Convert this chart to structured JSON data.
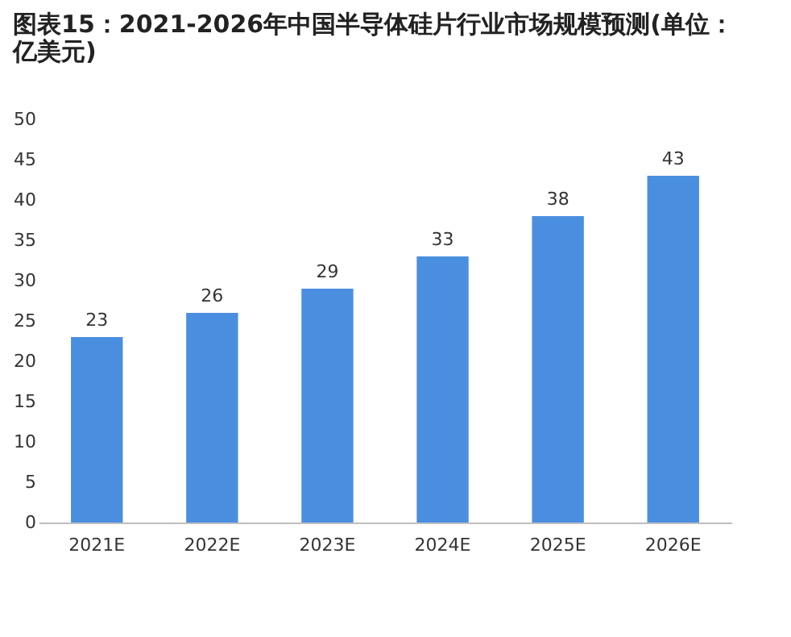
{
  "chart_data": {
    "type": "bar",
    "title": "图表15：2021-2026年中国半导体硅片行业市场规模预测(单位：亿美元)",
    "categories": [
      "2021E",
      "2022E",
      "2023E",
      "2024E",
      "2025E",
      "2026E"
    ],
    "values": [
      23,
      26,
      29,
      33,
      38,
      43
    ],
    "color": "#4a8ee0",
    "ylim": [
      0,
      50
    ],
    "yticks": [
      0,
      5,
      10,
      15,
      20,
      25,
      30,
      35,
      40,
      45,
      50
    ],
    "grid": false,
    "data_labels": true
  }
}
